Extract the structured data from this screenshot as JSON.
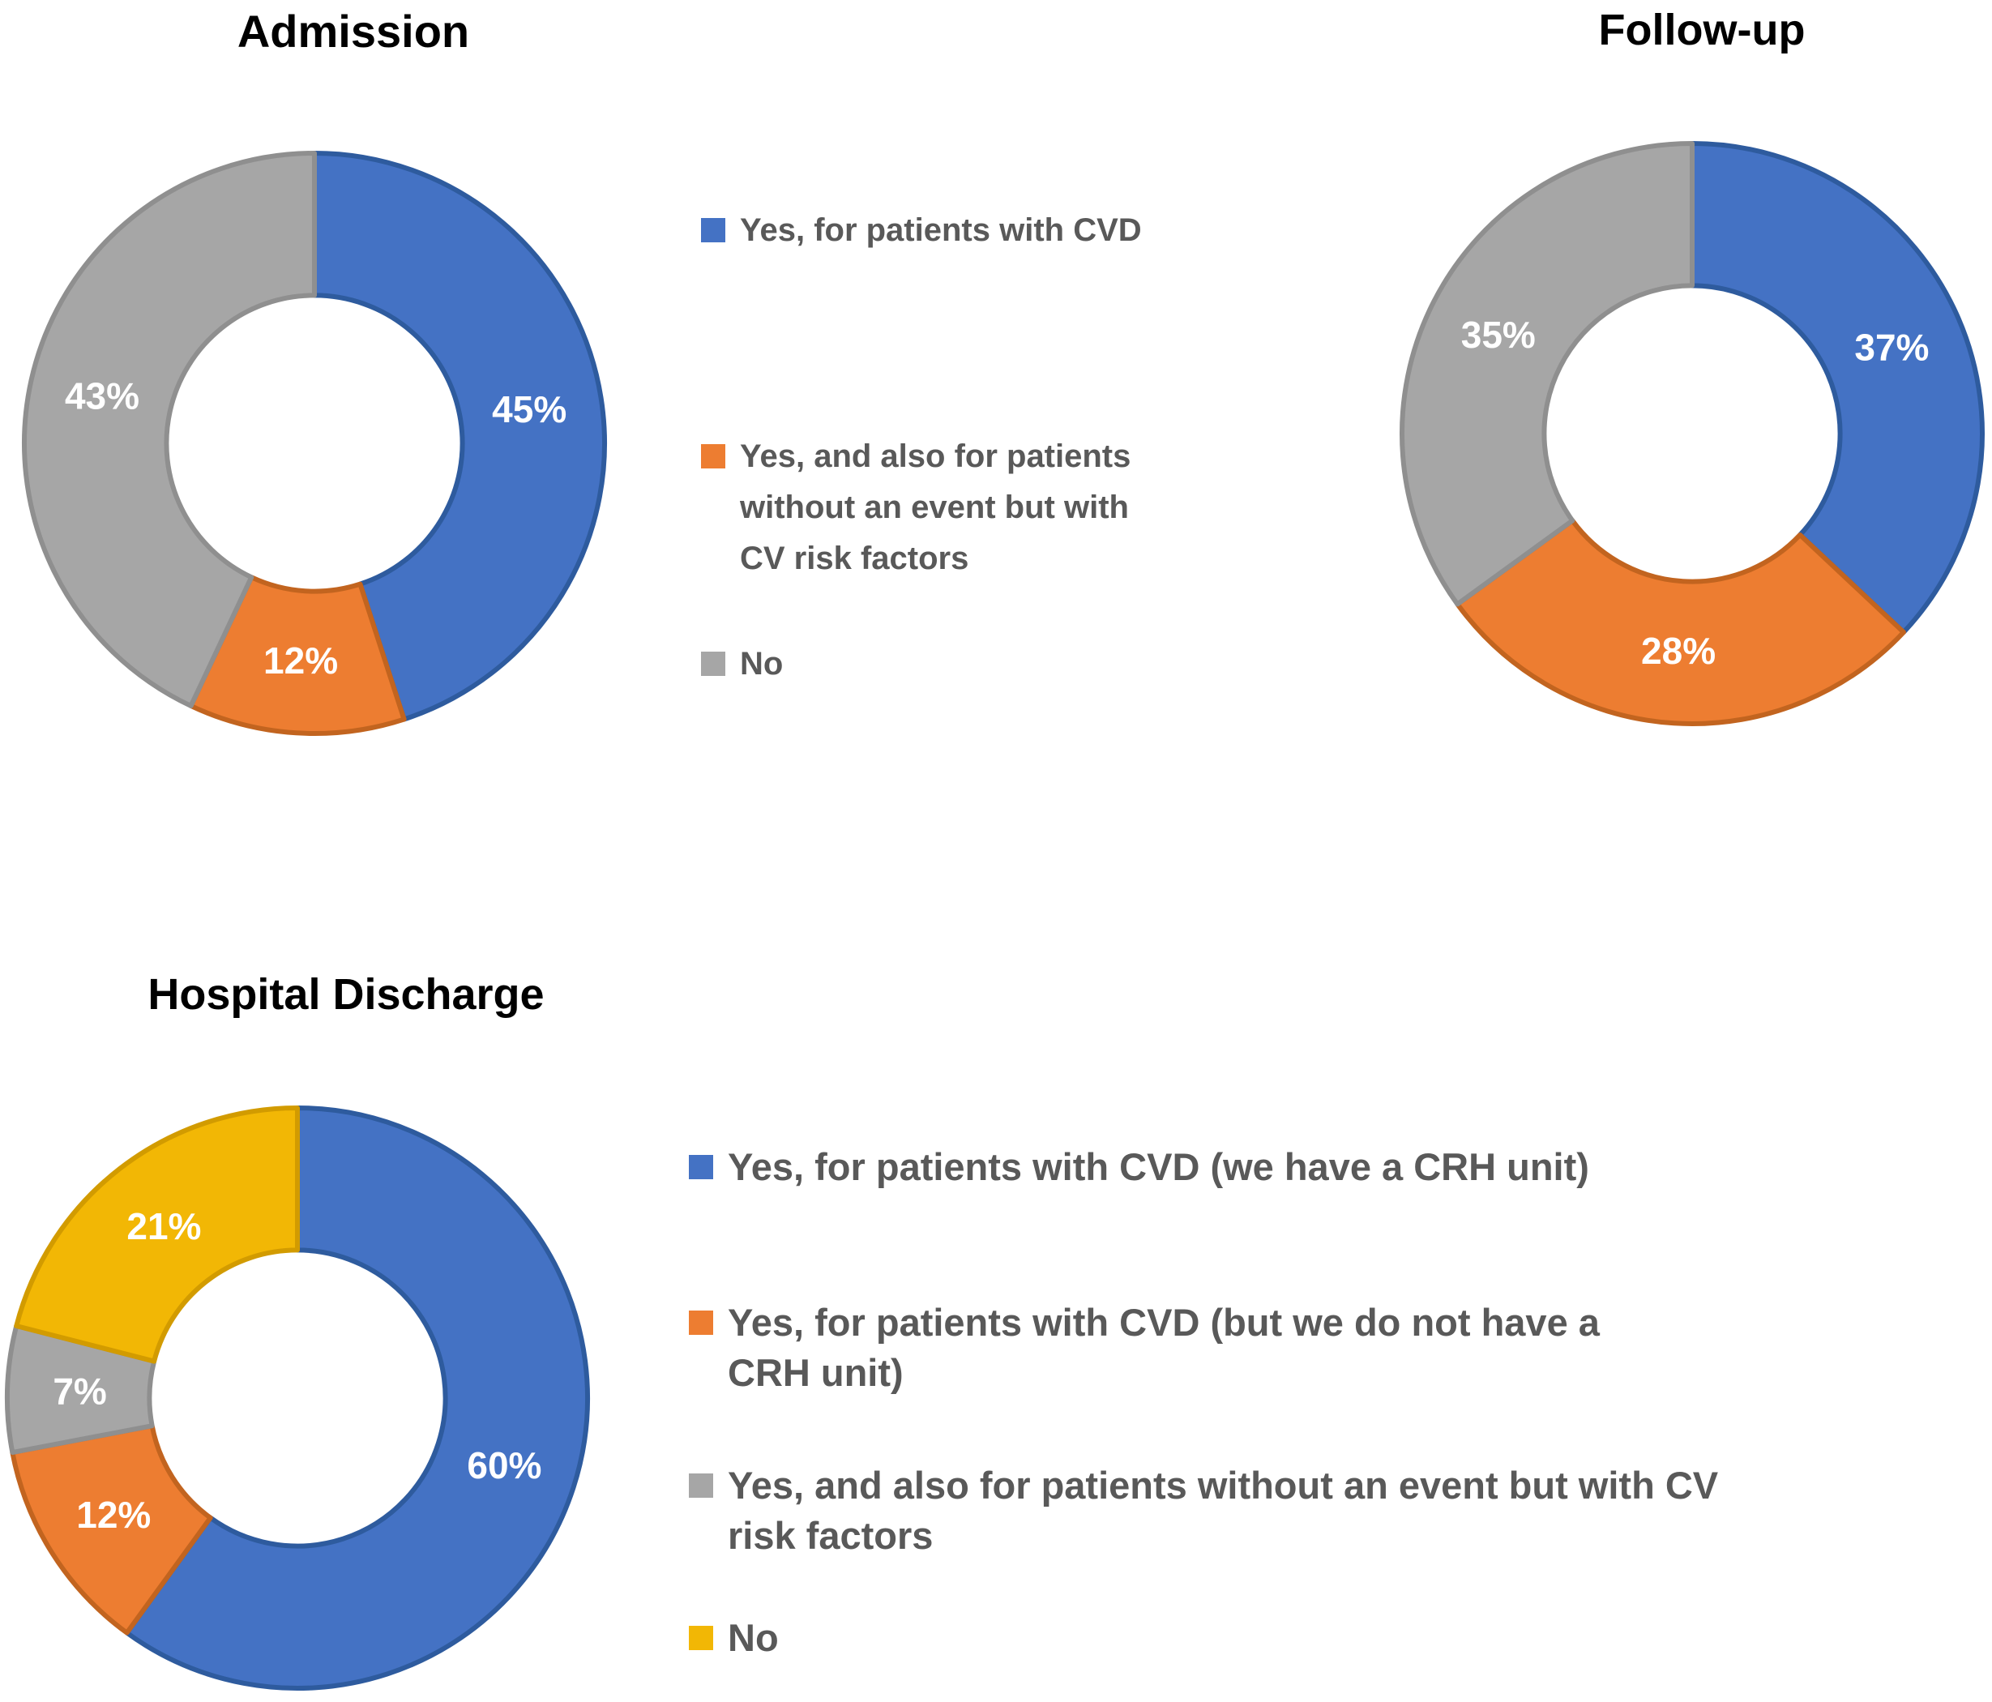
{
  "figure": {
    "background": "#ffffff",
    "label_text_color": "#ffffff",
    "legend_text_color": "#595959",
    "title_text_color": "#000000"
  },
  "chart_data": [
    {
      "id": "admission",
      "type": "pie",
      "subtype": "donut",
      "title": "Admission",
      "categories": [
        "Yes, for patients with CVD",
        "Yes, and also for patients without an event but with CV risk factors",
        "No"
      ],
      "values": [
        45,
        12,
        43
      ],
      "unit": "%",
      "data_labels": [
        "45%",
        "12%",
        "43%"
      ],
      "colors": [
        "#4472C4",
        "#ED7D31",
        "#A6A6A6"
      ],
      "border_colors": [
        "#2E5B9E",
        "#C2641F",
        "#8F8F8F"
      ],
      "start_angle": 0,
      "direction": "clockwise",
      "hole_ratio": 0.51,
      "legend_position": "right"
    },
    {
      "id": "followup",
      "type": "pie",
      "subtype": "donut",
      "title": "Follow-up",
      "categories": [
        "Yes, for patients with CVD",
        "Yes, and also for patients without an event but with CV risk factors",
        "No"
      ],
      "values": [
        37,
        28,
        35
      ],
      "unit": "%",
      "data_labels": [
        "37%",
        "28%",
        "35%"
      ],
      "colors": [
        "#4472C4",
        "#ED7D31",
        "#A6A6A6"
      ],
      "border_colors": [
        "#2E5B9E",
        "#C2641F",
        "#8F8F8F"
      ],
      "start_angle": 0,
      "direction": "clockwise",
      "hole_ratio": 0.51,
      "legend_position": "left"
    },
    {
      "id": "hospital-discharge",
      "type": "pie",
      "subtype": "donut",
      "title": "Hospital Discharge",
      "categories": [
        "Yes, for patients with CVD (we have a CRH unit)",
        "Yes, for patients with CVD (but we do not have a CRH unit)",
        "Yes, and also for patients without an event but with CV risk factors",
        "No"
      ],
      "values": [
        60,
        12,
        7,
        21
      ],
      "unit": "%",
      "data_labels": [
        "60%",
        "12%",
        "7%",
        "21%"
      ],
      "colors": [
        "#4472C4",
        "#ED7D31",
        "#A6A6A6",
        "#F2B705"
      ],
      "border_colors": [
        "#2E5B9E",
        "#C2641F",
        "#8F8F8F",
        "#D29B00"
      ],
      "start_angle": 0,
      "direction": "clockwise",
      "hole_ratio": 0.51,
      "legend_position": "right"
    }
  ],
  "legends": {
    "top": {
      "items": [
        {
          "label": "Yes, for patients with CVD",
          "color": "#4472C4"
        },
        {
          "label": "Yes, and also for patients\nwithout an event but with\nCV risk factors",
          "color": "#ED7D31"
        },
        {
          "label": "No",
          "color": "#A6A6A6"
        }
      ]
    },
    "bottom": {
      "items": [
        {
          "label": "Yes, for patients with CVD (we have a CRH unit)",
          "color": "#4472C4"
        },
        {
          "label": "Yes, for patients with CVD (but we do not have a\nCRH unit)",
          "color": "#ED7D31"
        },
        {
          "label": "Yes, and also for patients without an event but with CV\nrisk factors",
          "color": "#A6A6A6"
        },
        {
          "label": "No",
          "color": "#F2B705"
        }
      ]
    }
  }
}
